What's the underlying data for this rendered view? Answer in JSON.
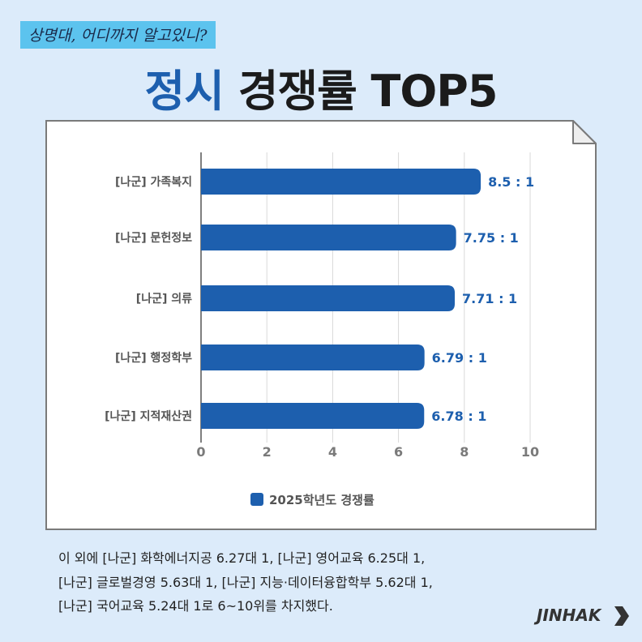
{
  "header": {
    "tag": "상명대, 어디까지 알고있니?",
    "title_accent": "정시",
    "title_rest": " 경쟁률 TOP5"
  },
  "chart_data": {
    "type": "bar",
    "orientation": "horizontal",
    "categories": [
      "[나군] 가족복지",
      "[나군] 문헌정보",
      "[나군] 의류",
      "[나군] 행정학부",
      "[나군] 지적재산권"
    ],
    "series": [
      {
        "name": "2025학년도 경쟁률",
        "values": [
          8.5,
          7.75,
          7.71,
          6.79,
          6.78
        ],
        "labels": [
          "8.5 : 1",
          "7.75 : 1",
          "7.71 : 1",
          "6.79 : 1",
          "6.78 : 1"
        ]
      }
    ],
    "xlim": [
      0,
      10
    ],
    "xticks": [
      "0",
      "2",
      "4",
      "6",
      "8",
      "10"
    ],
    "grid": true,
    "legend": "bottom",
    "color": "#1d5fae"
  },
  "note": {
    "lines": [
      "이 외에 [나군] 화학에너지공 6.27대 1, [나군] 영어교육 6.25대 1,",
      "[나군] 글로벌경영 5.63대 1, [나군] 지능·데이터융합학부 5.62대 1,",
      "[나군] 국어교육 5.24대 1로 6~10위를 차지했다."
    ]
  },
  "logo": {
    "text": "JINHAK",
    "icon": "chevron-right-icon"
  }
}
